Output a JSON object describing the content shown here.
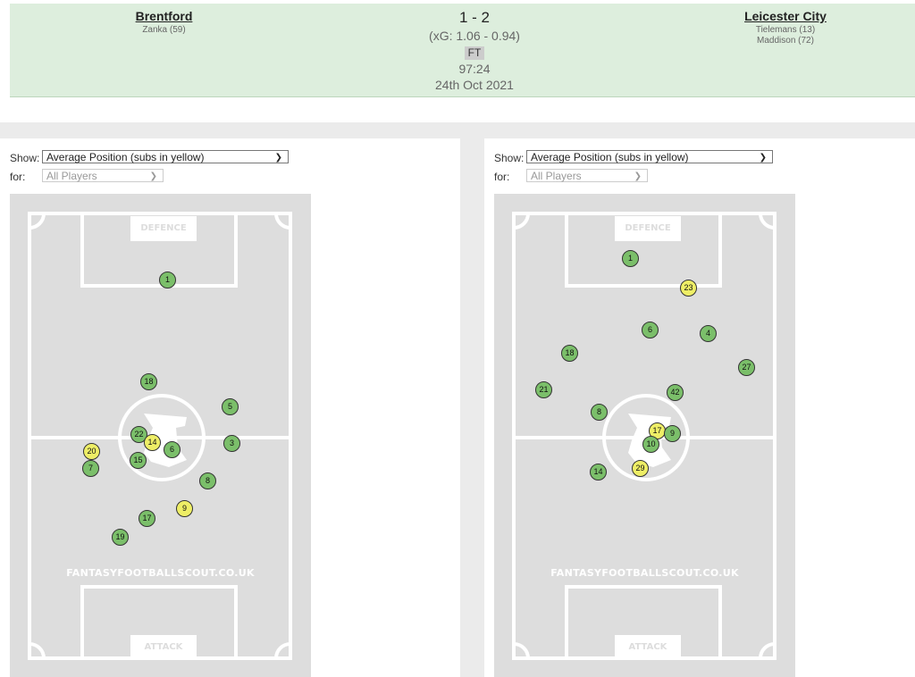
{
  "match": {
    "home": {
      "name": "Brentford",
      "scorers": [
        "Zanka (59)"
      ]
    },
    "away": {
      "name": "Leicester City",
      "scorers": [
        "Tielemans (13)",
        "Maddison (72)"
      ]
    },
    "score": "1 - 2",
    "xg": "(xG:  1.06 - 0.94)",
    "status": "FT",
    "clock": "97:24",
    "date": "24th Oct 2021"
  },
  "panels": [
    {
      "show_label": "Show:",
      "show_value": "Average Position (subs in yellow)",
      "for_label": "for:",
      "for_value": "All Players",
      "pitch": {
        "defence": "DEFENCE",
        "attack": "ATTACK",
        "watermark": "FANTASYFOOTBALLSCOUT.CO.UK"
      },
      "players": [
        {
          "number": "1",
          "sub": false
        },
        {
          "number": "18",
          "sub": false
        },
        {
          "number": "5",
          "sub": false
        },
        {
          "number": "22",
          "sub": false
        },
        {
          "number": "14",
          "sub": true
        },
        {
          "number": "6",
          "sub": false
        },
        {
          "number": "3",
          "sub": false
        },
        {
          "number": "20",
          "sub": true
        },
        {
          "number": "15",
          "sub": false
        },
        {
          "number": "7",
          "sub": false
        },
        {
          "number": "8",
          "sub": false
        },
        {
          "number": "9",
          "sub": true
        },
        {
          "number": "17",
          "sub": false
        },
        {
          "number": "19",
          "sub": false
        }
      ]
    },
    {
      "show_label": "Show:",
      "show_value": "Average Position (subs in yellow)",
      "for_label": "for:",
      "for_value": "All Players",
      "pitch": {
        "defence": "DEFENCE",
        "attack": "ATTACK",
        "watermark": "FANTASYFOOTBALLSCOUT.CO.UK"
      },
      "players": [
        {
          "number": "1",
          "sub": false
        },
        {
          "number": "23",
          "sub": true
        },
        {
          "number": "6",
          "sub": false
        },
        {
          "number": "4",
          "sub": false
        },
        {
          "number": "18",
          "sub": false
        },
        {
          "number": "27",
          "sub": false
        },
        {
          "number": "21",
          "sub": false
        },
        {
          "number": "42",
          "sub": false
        },
        {
          "number": "8",
          "sub": false
        },
        {
          "number": "17",
          "sub": true
        },
        {
          "number": "9",
          "sub": false
        },
        {
          "number": "10",
          "sub": false
        },
        {
          "number": "14",
          "sub": false
        },
        {
          "number": "29",
          "sub": true
        }
      ]
    }
  ]
}
